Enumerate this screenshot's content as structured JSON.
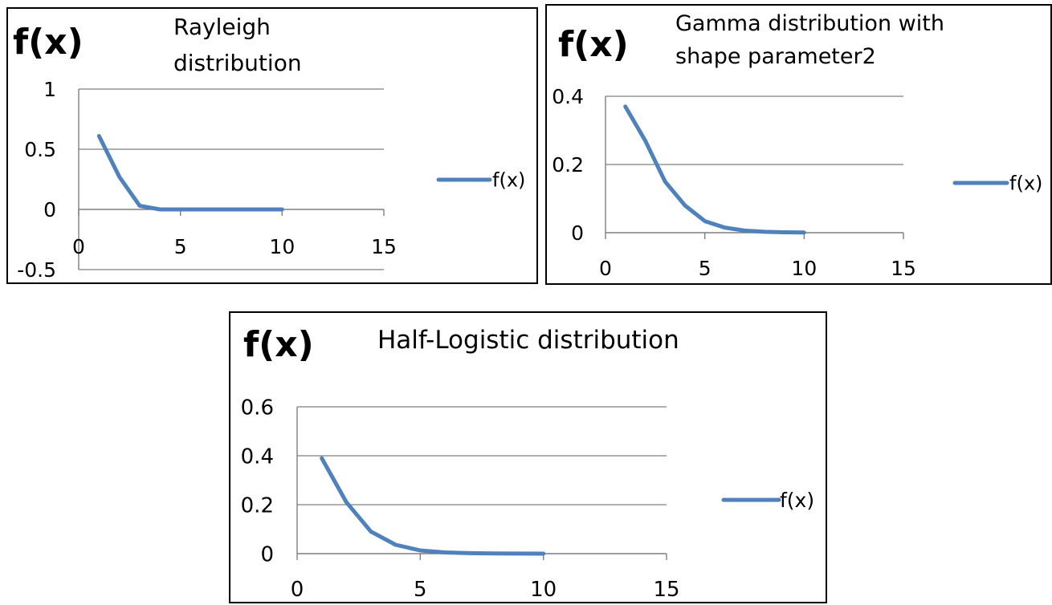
{
  "series_color": "#4f81bd",
  "axis_color": "#7f7f7f",
  "grid_color": "#7f7f7f",
  "chart_data": [
    {
      "type": "line",
      "ylabel": "f(x)",
      "title_lines": [
        "Rayleigh",
        "distribution"
      ],
      "xlim": [
        0,
        15
      ],
      "ylim": [
        -0.5,
        1
      ],
      "x_ticks": [
        "0",
        "5",
        "10",
        "15"
      ],
      "y_ticks": [
        "1",
        "0.5",
        "0",
        "-0.5"
      ],
      "grid": true,
      "legend_position": "right",
      "series": [
        {
          "name": "f(x)",
          "x": [
            1,
            2,
            3,
            4,
            5,
            6,
            7,
            8,
            9,
            10
          ],
          "values": [
            0.61,
            0.27,
            0.03,
            0.0,
            0.0,
            0.0,
            0.0,
            0.0,
            0.0,
            0.0
          ]
        }
      ]
    },
    {
      "type": "line",
      "ylabel": "f(x)",
      "title_lines": [
        "Gamma distribution with",
        "shape parameter2"
      ],
      "xlim": [
        0,
        15
      ],
      "ylim": [
        0,
        0.4
      ],
      "x_ticks": [
        "0",
        "5",
        "10",
        "15"
      ],
      "y_ticks": [
        "0.4",
        "0.2",
        "0"
      ],
      "grid": true,
      "legend_position": "right",
      "series": [
        {
          "name": "f(x)",
          "x": [
            1,
            2,
            3,
            4,
            5,
            6,
            7,
            8,
            9,
            10
          ],
          "values": [
            0.37,
            0.27,
            0.15,
            0.08,
            0.034,
            0.015,
            0.006,
            0.0027,
            0.0011,
            0.0005
          ]
        }
      ]
    },
    {
      "type": "line",
      "ylabel": "f(x)",
      "title_lines": [
        "Half-Logistic distribution"
      ],
      "xlim": [
        0,
        15
      ],
      "ylim": [
        0,
        0.6
      ],
      "x_ticks": [
        "0",
        "5",
        "10",
        "15"
      ],
      "y_ticks": [
        "0.6",
        "0.4",
        "0.2",
        "0"
      ],
      "grid": true,
      "legend_position": "right",
      "series": [
        {
          "name": "f(x)",
          "x": [
            1,
            2,
            3,
            4,
            5,
            6,
            7,
            8,
            9,
            10
          ],
          "values": [
            0.39,
            0.21,
            0.09,
            0.036,
            0.013,
            0.005,
            0.002,
            0.0007,
            0.0002,
            0.0001
          ]
        }
      ]
    }
  ]
}
